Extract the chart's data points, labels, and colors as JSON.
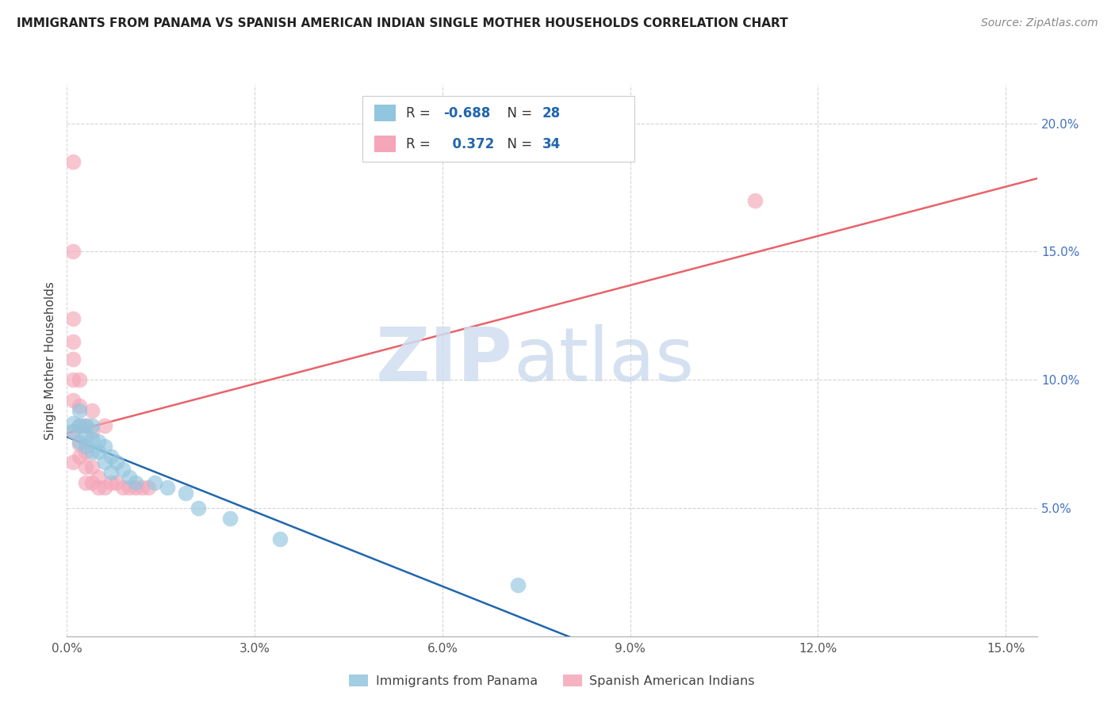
{
  "title": "IMMIGRANTS FROM PANAMA VS SPANISH AMERICAN INDIAN SINGLE MOTHER HOUSEHOLDS CORRELATION CHART",
  "source": "Source: ZipAtlas.com",
  "ylabel": "Single Mother Households",
  "watermark_zip": "ZIP",
  "watermark_atlas": "atlas",
  "xlim": [
    0.0,
    0.155
  ],
  "ylim": [
    0.0,
    0.215
  ],
  "xtick_vals": [
    0.0,
    0.03,
    0.06,
    0.09,
    0.12,
    0.15
  ],
  "xtick_labels": [
    "0.0%",
    "3.0%",
    "6.0%",
    "9.0%",
    "12.0%",
    "15.0%"
  ],
  "ytick_vals": [
    0.05,
    0.1,
    0.15,
    0.2
  ],
  "ytick_labels": [
    "5.0%",
    "10.0%",
    "15.0%",
    "20.0%"
  ],
  "legend_labels": [
    "Immigrants from Panama",
    "Spanish American Indians"
  ],
  "blue_color": "#92c5de",
  "pink_color": "#f4a6b8",
  "blue_line_color": "#2166ac",
  "pink_line_color": "#e8636a",
  "blue_scatter": [
    [
      0.001,
      0.083
    ],
    [
      0.001,
      0.08
    ],
    [
      0.002,
      0.088
    ],
    [
      0.002,
      0.082
    ],
    [
      0.002,
      0.076
    ],
    [
      0.003,
      0.082
    ],
    [
      0.003,
      0.078
    ],
    [
      0.003,
      0.074
    ],
    [
      0.004,
      0.082
    ],
    [
      0.004,
      0.077
    ],
    [
      0.004,
      0.072
    ],
    [
      0.005,
      0.076
    ],
    [
      0.005,
      0.072
    ],
    [
      0.006,
      0.074
    ],
    [
      0.006,
      0.068
    ],
    [
      0.007,
      0.07
    ],
    [
      0.007,
      0.064
    ],
    [
      0.008,
      0.068
    ],
    [
      0.009,
      0.065
    ],
    [
      0.01,
      0.062
    ],
    [
      0.011,
      0.06
    ],
    [
      0.014,
      0.06
    ],
    [
      0.016,
      0.058
    ],
    [
      0.019,
      0.056
    ],
    [
      0.021,
      0.05
    ],
    [
      0.026,
      0.046
    ],
    [
      0.034,
      0.038
    ],
    [
      0.072,
      0.02
    ]
  ],
  "pink_scatter": [
    [
      0.001,
      0.068
    ],
    [
      0.001,
      0.08
    ],
    [
      0.001,
      0.092
    ],
    [
      0.001,
      0.1
    ],
    [
      0.001,
      0.108
    ],
    [
      0.001,
      0.115
    ],
    [
      0.001,
      0.124
    ],
    [
      0.001,
      0.15
    ],
    [
      0.001,
      0.185
    ],
    [
      0.002,
      0.07
    ],
    [
      0.002,
      0.075
    ],
    [
      0.002,
      0.082
    ],
    [
      0.002,
      0.09
    ],
    [
      0.002,
      0.1
    ],
    [
      0.003,
      0.06
    ],
    [
      0.003,
      0.066
    ],
    [
      0.003,
      0.072
    ],
    [
      0.003,
      0.082
    ],
    [
      0.004,
      0.06
    ],
    [
      0.004,
      0.066
    ],
    [
      0.004,
      0.08
    ],
    [
      0.004,
      0.088
    ],
    [
      0.005,
      0.058
    ],
    [
      0.005,
      0.062
    ],
    [
      0.006,
      0.058
    ],
    [
      0.006,
      0.082
    ],
    [
      0.007,
      0.06
    ],
    [
      0.008,
      0.06
    ],
    [
      0.009,
      0.058
    ],
    [
      0.01,
      0.058
    ],
    [
      0.011,
      0.058
    ],
    [
      0.012,
      0.058
    ],
    [
      0.013,
      0.058
    ],
    [
      0.11,
      0.17
    ]
  ],
  "background_color": "#ffffff",
  "grid_color": "#d0d0d0"
}
